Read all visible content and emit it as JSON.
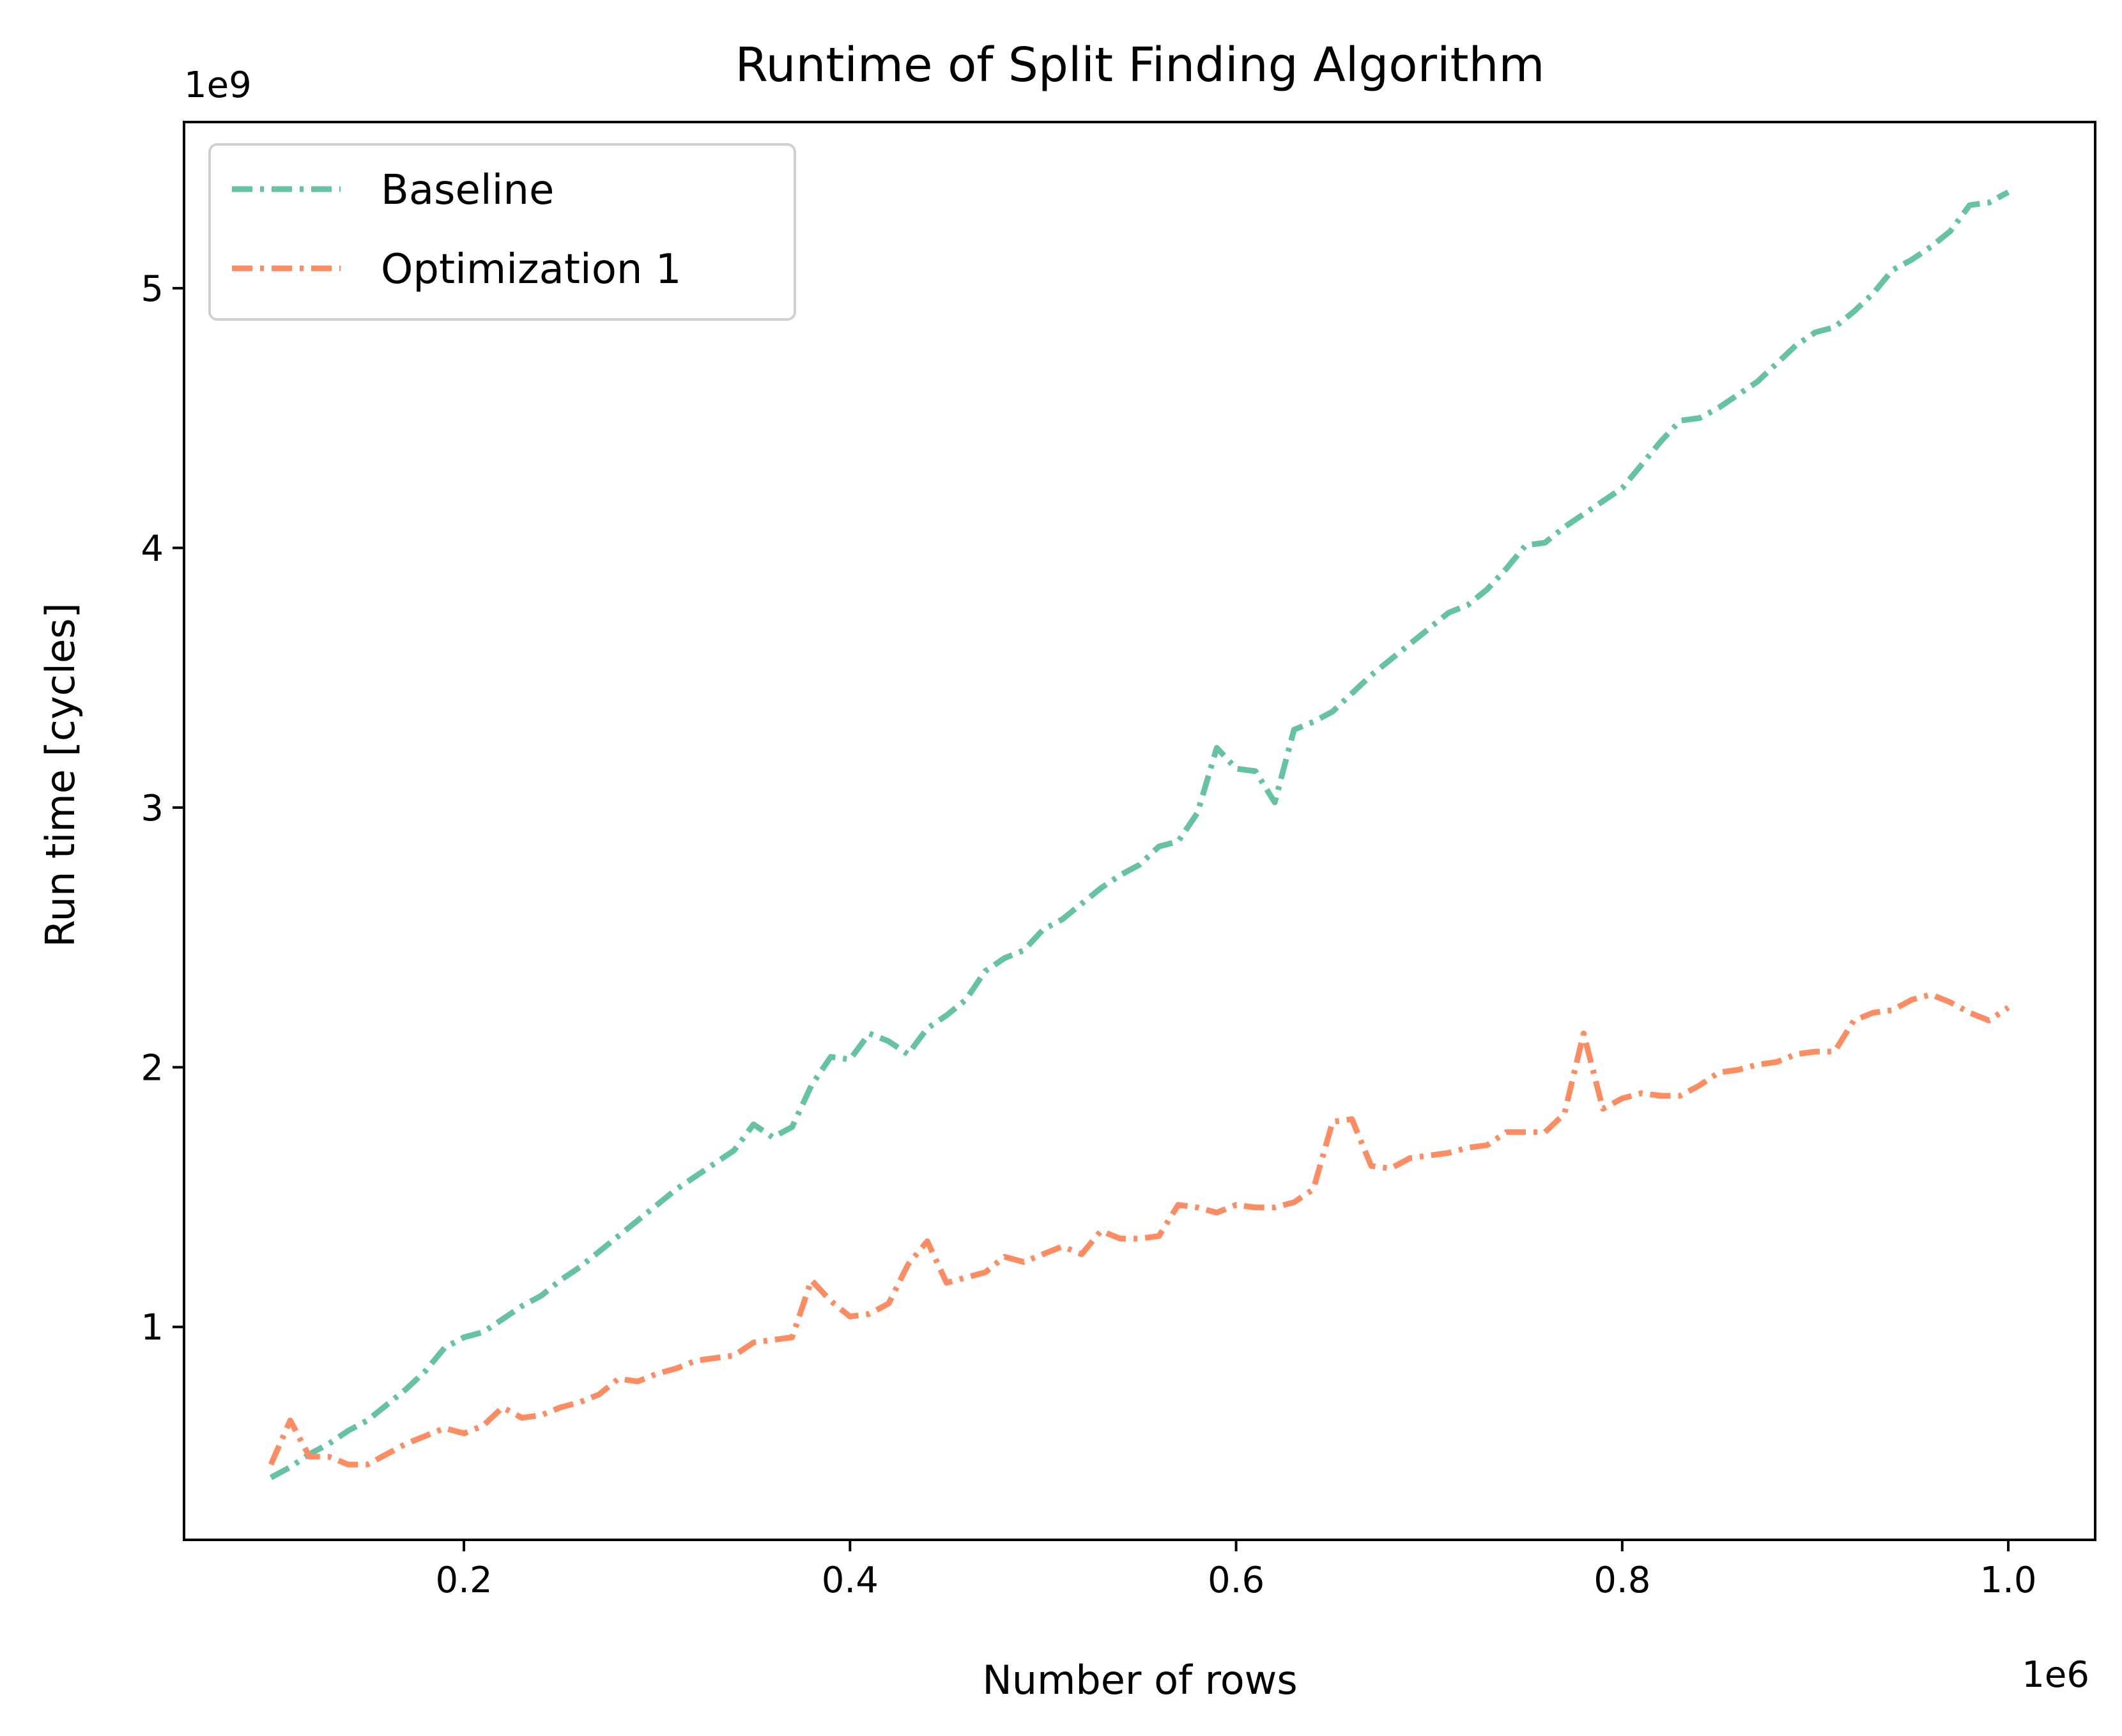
{
  "chart_data": {
    "type": "line",
    "title": "Runtime of Split Finding Algorithm",
    "xlabel": "Number of rows",
    "ylabel": "Run time [cycles]",
    "x_offset_label": "1e6",
    "y_offset_label": "1e9",
    "xlim": [
      0.055,
      1.045
    ],
    "ylim": [
      0.18,
      5.64
    ],
    "xticks": [
      0.2,
      0.4,
      0.6,
      0.8,
      1.0
    ],
    "xtick_labels": [
      "0.2",
      "0.4",
      "0.6",
      "0.8",
      "1.0"
    ],
    "yticks": [
      1,
      2,
      3,
      4,
      5
    ],
    "ytick_labels": [
      "1",
      "2",
      "3",
      "4",
      "5"
    ],
    "grid": false,
    "legend_position": "upper-left",
    "x": [
      0.1,
      0.11,
      0.12,
      0.13,
      0.14,
      0.15,
      0.16,
      0.17,
      0.18,
      0.19,
      0.2,
      0.21,
      0.22,
      0.23,
      0.24,
      0.25,
      0.26,
      0.27,
      0.28,
      0.29,
      0.3,
      0.31,
      0.32,
      0.33,
      0.34,
      0.35,
      0.36,
      0.37,
      0.38,
      0.39,
      0.4,
      0.41,
      0.42,
      0.43,
      0.44,
      0.45,
      0.46,
      0.47,
      0.48,
      0.49,
      0.5,
      0.51,
      0.52,
      0.53,
      0.54,
      0.55,
      0.56,
      0.57,
      0.58,
      0.59,
      0.6,
      0.61,
      0.62,
      0.63,
      0.64,
      0.65,
      0.66,
      0.67,
      0.68,
      0.69,
      0.7,
      0.71,
      0.72,
      0.73,
      0.74,
      0.75,
      0.76,
      0.77,
      0.78,
      0.79,
      0.8,
      0.81,
      0.82,
      0.83,
      0.84,
      0.85,
      0.86,
      0.87,
      0.88,
      0.89,
      0.9,
      0.91,
      0.92,
      0.93,
      0.94,
      0.95,
      0.96,
      0.97,
      0.98,
      0.99,
      1.0
    ],
    "series": [
      {
        "name": "Baseline",
        "color": "#66c2a5",
        "values": [
          0.42,
          0.46,
          0.51,
          0.55,
          0.6,
          0.64,
          0.7,
          0.76,
          0.83,
          0.92,
          0.96,
          0.98,
          1.03,
          1.08,
          1.12,
          1.18,
          1.23,
          1.29,
          1.35,
          1.41,
          1.47,
          1.53,
          1.58,
          1.63,
          1.68,
          1.78,
          1.73,
          1.77,
          1.93,
          2.04,
          2.03,
          2.13,
          2.1,
          2.05,
          2.15,
          2.2,
          2.26,
          2.37,
          2.42,
          2.45,
          2.53,
          2.57,
          2.63,
          2.69,
          2.74,
          2.78,
          2.85,
          2.87,
          2.98,
          3.23,
          3.15,
          3.14,
          3.02,
          3.3,
          3.33,
          3.37,
          3.44,
          3.51,
          3.57,
          3.63,
          3.69,
          3.75,
          3.78,
          3.84,
          3.92,
          4.01,
          4.02,
          4.08,
          4.13,
          4.18,
          4.23,
          4.32,
          4.41,
          4.49,
          4.5,
          4.54,
          4.59,
          4.64,
          4.71,
          4.78,
          4.83,
          4.85,
          4.91,
          4.98,
          5.07,
          5.11,
          5.16,
          5.22,
          5.32,
          5.33,
          5.37
        ]
      },
      {
        "name": "Optimization 1",
        "color": "#fc8d62",
        "values": [
          0.47,
          0.64,
          0.5,
          0.5,
          0.47,
          0.47,
          0.51,
          0.55,
          0.58,
          0.61,
          0.59,
          0.62,
          0.69,
          0.65,
          0.66,
          0.69,
          0.71,
          0.74,
          0.8,
          0.79,
          0.82,
          0.84,
          0.87,
          0.88,
          0.89,
          0.94,
          0.95,
          0.96,
          1.18,
          1.1,
          1.04,
          1.05,
          1.09,
          1.24,
          1.33,
          1.17,
          1.19,
          1.21,
          1.27,
          1.25,
          1.28,
          1.31,
          1.28,
          1.37,
          1.34,
          1.34,
          1.35,
          1.47,
          1.46,
          1.44,
          1.47,
          1.46,
          1.46,
          1.48,
          1.53,
          1.79,
          1.8,
          1.62,
          1.61,
          1.65,
          1.66,
          1.67,
          1.69,
          1.7,
          1.75,
          1.75,
          1.75,
          1.82,
          2.13,
          1.84,
          1.88,
          1.9,
          1.89,
          1.89,
          1.93,
          1.98,
          1.99,
          2.01,
          2.02,
          2.05,
          2.06,
          2.06,
          2.18,
          2.21,
          2.22,
          2.26,
          2.28,
          2.25,
          2.21,
          2.18,
          2.23
        ]
      }
    ]
  }
}
